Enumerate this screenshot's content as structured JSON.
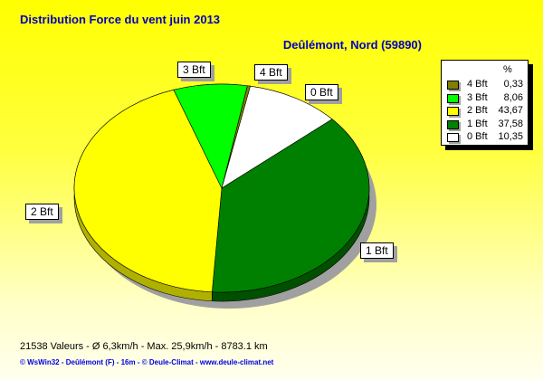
{
  "title": "Distribution Force du vent  juin 2013",
  "location": "Deûlémont, Nord (59890)",
  "stats": "21538 Valeurs   -   Ø 6,3km/h  -  Max. 25,9km/h   -   8783.1 km",
  "footer": "© WsWin32  -  Deûlémont (F) - 16m  -  © Deule-Climat - www.deule-climat.net",
  "chart_data": {
    "type": "pie",
    "title": "Distribution Force du vent  juin 2013",
    "legend_header": "%",
    "legend_placement": "right",
    "slices": [
      {
        "label": "4 Bft",
        "value": 0.33,
        "value_text": "0,33",
        "color": "#808000",
        "dark": "#505000"
      },
      {
        "label": "0 Bft",
        "value": 10.35,
        "value_text": "10,35",
        "color": "#ffffff",
        "dark": "#b0b0b0"
      },
      {
        "label": "1 Bft",
        "value": 37.58,
        "value_text": "37,58",
        "color": "#008000",
        "dark": "#005000"
      },
      {
        "label": "2 Bft",
        "value": 43.67,
        "value_text": "43,67",
        "color": "#ffff00",
        "dark": "#b0b000"
      },
      {
        "label": "3 Bft",
        "value": 8.06,
        "value_text": "8,06",
        "color": "#00ff00",
        "dark": "#00a000"
      }
    ],
    "legend_order": [
      "4 Bft",
      "3 Bft",
      "2 Bft",
      "1 Bft",
      "0 Bft"
    ]
  }
}
